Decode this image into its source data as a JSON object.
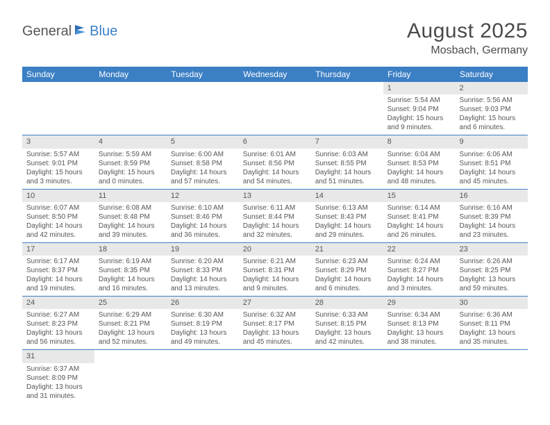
{
  "logo": {
    "word1": "General",
    "word2": "Blue"
  },
  "title": "August 2025",
  "subtitle": "Mosbach, Germany",
  "colors": {
    "header_bg": "#3b7fc4",
    "header_text": "#ffffff",
    "daynum_bg": "#e8e8e8",
    "row_border": "#3b7fc4",
    "body_text": "#555555"
  },
  "weekdays": [
    "Sunday",
    "Monday",
    "Tuesday",
    "Wednesday",
    "Thursday",
    "Friday",
    "Saturday"
  ],
  "weeks": [
    [
      null,
      null,
      null,
      null,
      null,
      {
        "n": "1",
        "sr": "5:54 AM",
        "ss": "9:04 PM",
        "dl": "15 hours and 9 minutes."
      },
      {
        "n": "2",
        "sr": "5:56 AM",
        "ss": "9:03 PM",
        "dl": "15 hours and 6 minutes."
      }
    ],
    [
      {
        "n": "3",
        "sr": "5:57 AM",
        "ss": "9:01 PM",
        "dl": "15 hours and 3 minutes."
      },
      {
        "n": "4",
        "sr": "5:59 AM",
        "ss": "8:59 PM",
        "dl": "15 hours and 0 minutes."
      },
      {
        "n": "5",
        "sr": "6:00 AM",
        "ss": "8:58 PM",
        "dl": "14 hours and 57 minutes."
      },
      {
        "n": "6",
        "sr": "6:01 AM",
        "ss": "8:56 PM",
        "dl": "14 hours and 54 minutes."
      },
      {
        "n": "7",
        "sr": "6:03 AM",
        "ss": "8:55 PM",
        "dl": "14 hours and 51 minutes."
      },
      {
        "n": "8",
        "sr": "6:04 AM",
        "ss": "8:53 PM",
        "dl": "14 hours and 48 minutes."
      },
      {
        "n": "9",
        "sr": "6:06 AM",
        "ss": "8:51 PM",
        "dl": "14 hours and 45 minutes."
      }
    ],
    [
      {
        "n": "10",
        "sr": "6:07 AM",
        "ss": "8:50 PM",
        "dl": "14 hours and 42 minutes."
      },
      {
        "n": "11",
        "sr": "6:08 AM",
        "ss": "8:48 PM",
        "dl": "14 hours and 39 minutes."
      },
      {
        "n": "12",
        "sr": "6:10 AM",
        "ss": "8:46 PM",
        "dl": "14 hours and 36 minutes."
      },
      {
        "n": "13",
        "sr": "6:11 AM",
        "ss": "8:44 PM",
        "dl": "14 hours and 32 minutes."
      },
      {
        "n": "14",
        "sr": "6:13 AM",
        "ss": "8:43 PM",
        "dl": "14 hours and 29 minutes."
      },
      {
        "n": "15",
        "sr": "6:14 AM",
        "ss": "8:41 PM",
        "dl": "14 hours and 26 minutes."
      },
      {
        "n": "16",
        "sr": "6:16 AM",
        "ss": "8:39 PM",
        "dl": "14 hours and 23 minutes."
      }
    ],
    [
      {
        "n": "17",
        "sr": "6:17 AM",
        "ss": "8:37 PM",
        "dl": "14 hours and 19 minutes."
      },
      {
        "n": "18",
        "sr": "6:19 AM",
        "ss": "8:35 PM",
        "dl": "14 hours and 16 minutes."
      },
      {
        "n": "19",
        "sr": "6:20 AM",
        "ss": "8:33 PM",
        "dl": "14 hours and 13 minutes."
      },
      {
        "n": "20",
        "sr": "6:21 AM",
        "ss": "8:31 PM",
        "dl": "14 hours and 9 minutes."
      },
      {
        "n": "21",
        "sr": "6:23 AM",
        "ss": "8:29 PM",
        "dl": "14 hours and 6 minutes."
      },
      {
        "n": "22",
        "sr": "6:24 AM",
        "ss": "8:27 PM",
        "dl": "14 hours and 3 minutes."
      },
      {
        "n": "23",
        "sr": "6:26 AM",
        "ss": "8:25 PM",
        "dl": "13 hours and 59 minutes."
      }
    ],
    [
      {
        "n": "24",
        "sr": "6:27 AM",
        "ss": "8:23 PM",
        "dl": "13 hours and 56 minutes."
      },
      {
        "n": "25",
        "sr": "6:29 AM",
        "ss": "8:21 PM",
        "dl": "13 hours and 52 minutes."
      },
      {
        "n": "26",
        "sr": "6:30 AM",
        "ss": "8:19 PM",
        "dl": "13 hours and 49 minutes."
      },
      {
        "n": "27",
        "sr": "6:32 AM",
        "ss": "8:17 PM",
        "dl": "13 hours and 45 minutes."
      },
      {
        "n": "28",
        "sr": "6:33 AM",
        "ss": "8:15 PM",
        "dl": "13 hours and 42 minutes."
      },
      {
        "n": "29",
        "sr": "6:34 AM",
        "ss": "8:13 PM",
        "dl": "13 hours and 38 minutes."
      },
      {
        "n": "30",
        "sr": "6:36 AM",
        "ss": "8:11 PM",
        "dl": "13 hours and 35 minutes."
      }
    ],
    [
      {
        "n": "31",
        "sr": "6:37 AM",
        "ss": "8:09 PM",
        "dl": "13 hours and 31 minutes."
      },
      null,
      null,
      null,
      null,
      null,
      null
    ]
  ],
  "labels": {
    "sunrise": "Sunrise:",
    "sunset": "Sunset:",
    "daylight": "Daylight:"
  }
}
